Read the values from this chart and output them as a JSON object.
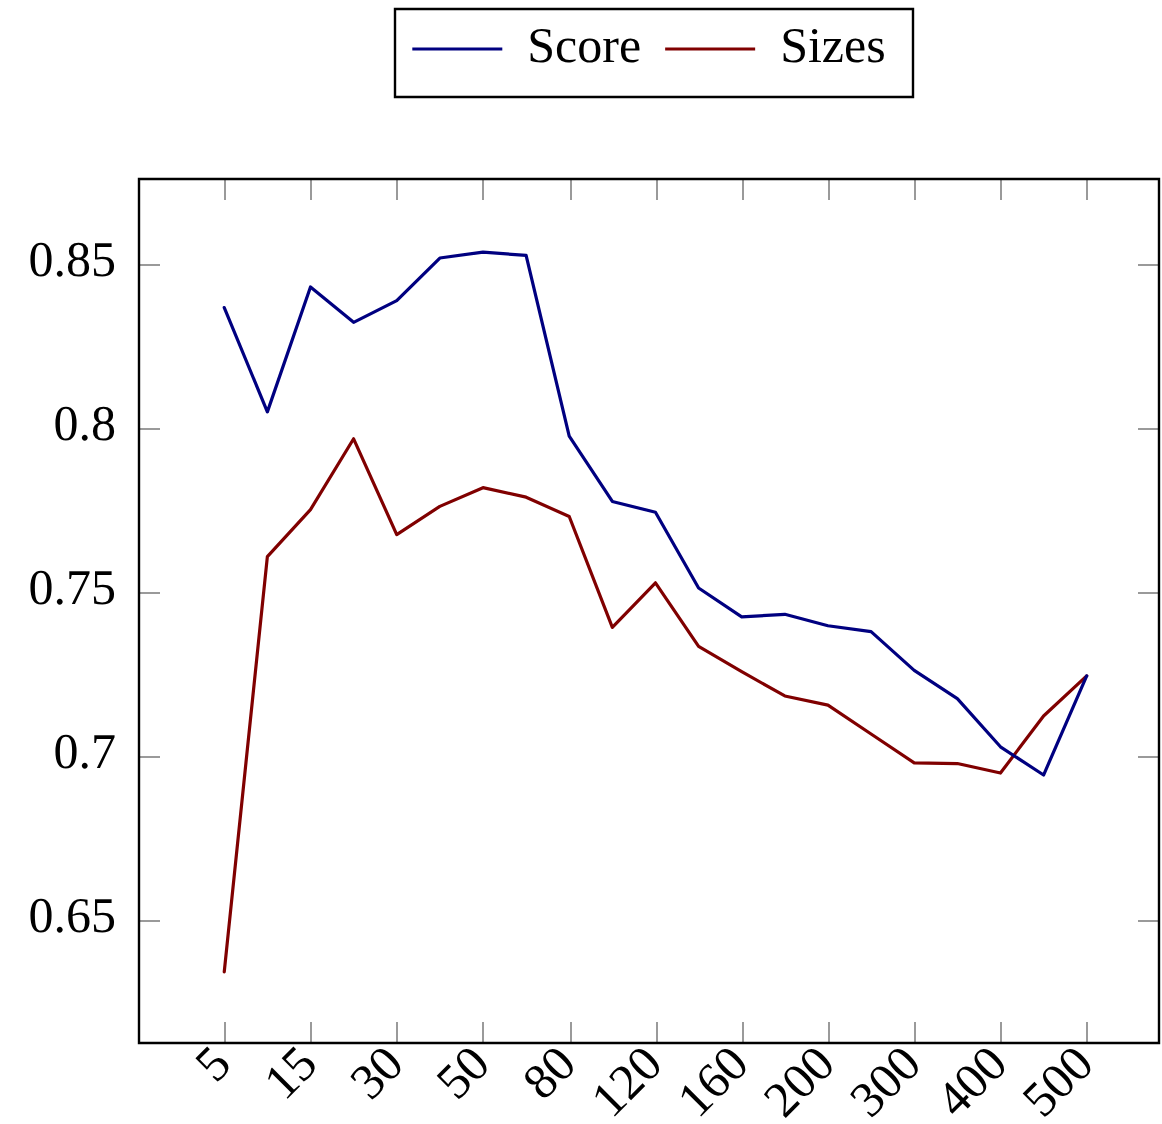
{
  "chart_data": {
    "type": "line",
    "categories": [
      "5",
      null,
      "15",
      null,
      "30",
      null,
      "50",
      null,
      "80",
      null,
      "120",
      null,
      "160",
      null,
      "200",
      null,
      "300",
      null,
      "400",
      null,
      "500"
    ],
    "series": [
      {
        "name": "Score",
        "color": "#000080",
        "values": [
          0.8365,
          0.8047,
          0.8428,
          0.832,
          0.8386,
          0.8516,
          0.8534,
          0.8524,
          0.7973,
          0.7774,
          0.7741,
          0.751,
          0.7422,
          0.743,
          0.7395,
          0.7377,
          0.7259,
          0.7173,
          0.7026,
          0.694,
          0.7242
        ]
      },
      {
        "name": "Sizes",
        "color": "#800000",
        "values": [
          0.634,
          0.7606,
          0.7749,
          0.7965,
          0.7673,
          0.7759,
          0.7816,
          0.7787,
          0.7728,
          0.739,
          0.7526,
          0.7332,
          0.7255,
          0.7181,
          0.7153,
          0.7065,
          0.6977,
          0.6975,
          0.6946,
          0.712,
          0.7242
        ]
      }
    ],
    "ylim": [
      0.612,
      0.876
    ],
    "yticks": [
      0.65,
      0.7,
      0.75,
      0.8,
      0.85
    ],
    "grid": false,
    "legend": "top",
    "marker": "none",
    "line_style": "solid"
  }
}
